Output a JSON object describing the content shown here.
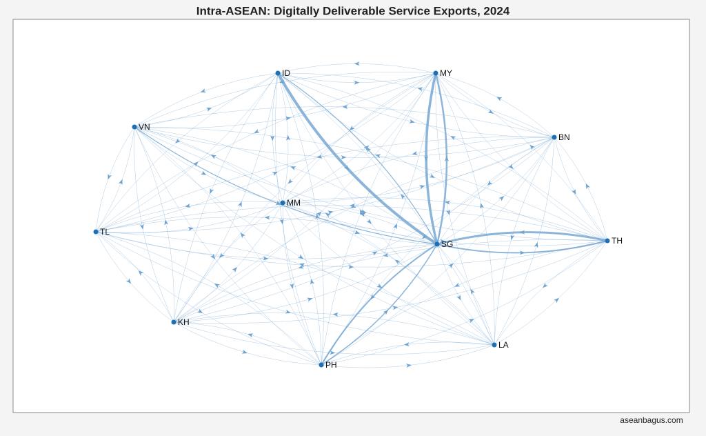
{
  "title": "Intra-ASEAN: Digitally Deliverable Service Exports, 2024",
  "nodes": [
    {
      "label": "ID"
    },
    {
      "label": "MY"
    },
    {
      "label": "VN"
    },
    {
      "label": "BN"
    },
    {
      "label": "MM"
    },
    {
      "label": "TL"
    },
    {
      "label": "SG"
    },
    {
      "label": "TH"
    },
    {
      "label": "KH"
    },
    {
      "label": "LA"
    },
    {
      "label": "PH"
    }
  ],
  "footer": "aseanbagus.com"
}
